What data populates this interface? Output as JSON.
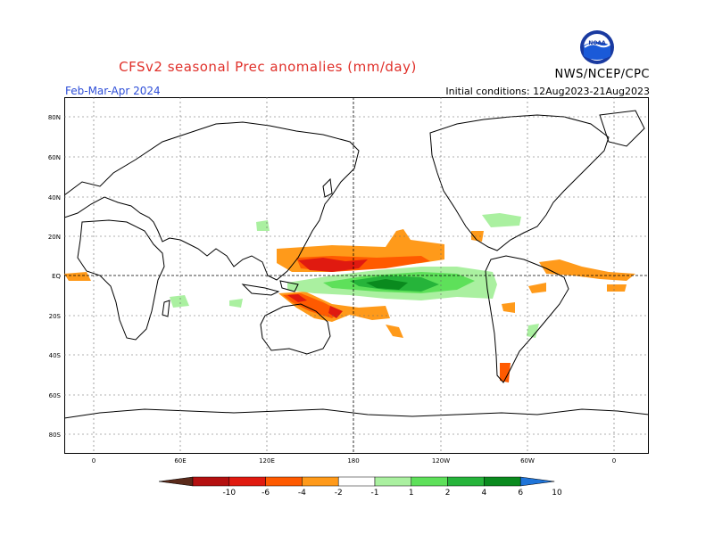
{
  "header": {
    "title": "CFSv2 seasonal Prec anomalies (mm/day)",
    "season": "Feb-Mar-Apr 2024",
    "initial_conditions": "Initial conditions: 12Aug2023-21Aug2023",
    "agency": "NWS/NCEP/CPC",
    "logo_text": "NOAA"
  },
  "map": {
    "lat_labels": [
      "80N",
      "60N",
      "40N",
      "20N",
      "EQ",
      "20S",
      "40S",
      "60S",
      "80S"
    ],
    "lon_labels": [
      "0",
      "60E",
      "120E",
      "180",
      "120W",
      "60W",
      "0"
    ]
  },
  "colorbar": {
    "labels": [
      "-10",
      "-6",
      "-4",
      "-2",
      "-1",
      "1",
      "2",
      "4",
      "6",
      "10"
    ],
    "colors": [
      "#5a2a1a",
      "#b41010",
      "#e01a10",
      "#ff5a00",
      "#ff9a1a",
      "#ffffff",
      "#aaf0a0",
      "#5ee05a",
      "#26b43a",
      "#0a8a1e",
      "#1f74d8"
    ]
  }
}
